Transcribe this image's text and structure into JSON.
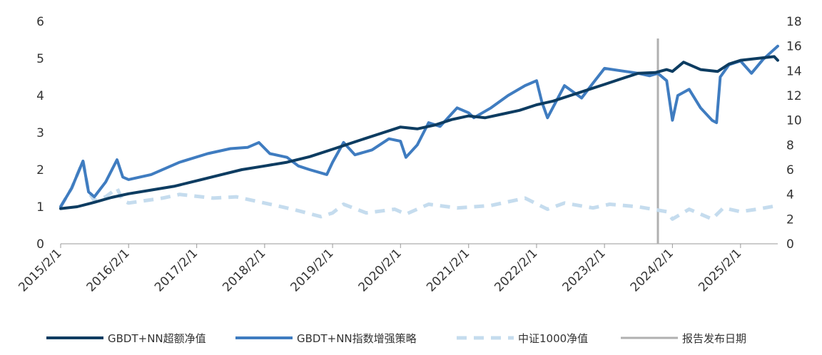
{
  "chart_data": {
    "type": "line",
    "title": "",
    "xlabel": "",
    "ylabel_left": "",
    "ylabel_right": "",
    "ylim_left": [
      0,
      6
    ],
    "ylim_right": [
      0,
      18
    ],
    "yticks_left": [
      "0",
      "1",
      "2",
      "3",
      "4",
      "5",
      "6"
    ],
    "yticks_right": [
      "0",
      "2",
      "4",
      "6",
      "8",
      "10",
      "12",
      "14",
      "16",
      "18"
    ],
    "xlim": [
      "2015/2/1",
      "2025/8/20"
    ],
    "xticks": [
      "2015/2/1",
      "2016/2/1",
      "2017/2/1",
      "2018/2/1",
      "2019/2/1",
      "2020/2/1",
      "2021/2/1",
      "2022/2/1",
      "2023/2/1",
      "2024/2/1",
      "2025/2/1"
    ],
    "grid": false,
    "legend_position": "bottom",
    "report_date": "2023/11/15",
    "report_date_label": "报告发布日期",
    "series": [
      {
        "name": "GBDT+NN超额净值",
        "axis": "left",
        "color": "#0d3c61",
        "style": "solid",
        "points": [
          [
            "2015/2/1",
            0.95
          ],
          [
            "2015/5/1",
            1.0
          ],
          [
            "2015/8/1",
            1.12
          ],
          [
            "2015/11/1",
            1.25
          ],
          [
            "2016/2/1",
            1.35
          ],
          [
            "2016/6/1",
            1.45
          ],
          [
            "2016/10/1",
            1.55
          ],
          [
            "2017/2/1",
            1.7
          ],
          [
            "2017/6/1",
            1.85
          ],
          [
            "2017/10/1",
            2.0
          ],
          [
            "2018/2/1",
            2.1
          ],
          [
            "2018/6/1",
            2.2
          ],
          [
            "2018/10/1",
            2.35
          ],
          [
            "2019/2/1",
            2.55
          ],
          [
            "2019/6/1",
            2.75
          ],
          [
            "2019/10/1",
            2.95
          ],
          [
            "2020/2/1",
            3.15
          ],
          [
            "2020/5/1",
            3.1
          ],
          [
            "2020/8/1",
            3.2
          ],
          [
            "2020/11/1",
            3.35
          ],
          [
            "2021/2/1",
            3.45
          ],
          [
            "2021/5/1",
            3.4
          ],
          [
            "2021/8/1",
            3.5
          ],
          [
            "2021/11/1",
            3.6
          ],
          [
            "2022/2/1",
            3.75
          ],
          [
            "2022/5/1",
            3.85
          ],
          [
            "2022/8/1",
            4.0
          ],
          [
            "2022/11/1",
            4.15
          ],
          [
            "2023/2/1",
            4.3
          ],
          [
            "2023/5/1",
            4.45
          ],
          [
            "2023/8/1",
            4.6
          ],
          [
            "2023/11/1",
            4.62
          ],
          [
            "2024/1/1",
            4.7
          ],
          [
            "2024/2/1",
            4.65
          ],
          [
            "2024/4/1",
            4.9
          ],
          [
            "2024/7/1",
            4.7
          ],
          [
            "2024/10/1",
            4.65
          ],
          [
            "2024/12/1",
            4.85
          ],
          [
            "2025/2/1",
            4.95
          ],
          [
            "2025/5/1",
            5.0
          ],
          [
            "2025/8/1",
            5.05
          ],
          [
            "2025/8/20",
            4.95
          ]
        ]
      },
      {
        "name": "GBDT+NN指数增强策略",
        "axis": "right",
        "color": "#3f7cc0",
        "style": "solid",
        "points": [
          [
            "2015/2/1",
            3.0
          ],
          [
            "2015/4/1",
            4.5
          ],
          [
            "2015/6/1",
            6.7
          ],
          [
            "2015/7/1",
            4.2
          ],
          [
            "2015/8/1",
            3.8
          ],
          [
            "2015/10/1",
            5.0
          ],
          [
            "2015/12/1",
            6.8
          ],
          [
            "2016/1/1",
            5.4
          ],
          [
            "2016/2/1",
            5.2
          ],
          [
            "2016/6/1",
            5.6
          ],
          [
            "2016/11/1",
            6.6
          ],
          [
            "2017/4/1",
            7.3
          ],
          [
            "2017/8/1",
            7.7
          ],
          [
            "2017/11/1",
            7.8
          ],
          [
            "2018/1/1",
            8.2
          ],
          [
            "2018/3/1",
            7.3
          ],
          [
            "2018/6/1",
            7.0
          ],
          [
            "2018/8/1",
            6.3
          ],
          [
            "2018/10/1",
            6.0
          ],
          [
            "2019/1/1",
            5.6
          ],
          [
            "2019/2/1",
            6.6
          ],
          [
            "2019/4/1",
            8.2
          ],
          [
            "2019/6/1",
            7.2
          ],
          [
            "2019/9/1",
            7.6
          ],
          [
            "2019/12/1",
            8.5
          ],
          [
            "2020/2/1",
            8.3
          ],
          [
            "2020/3/1",
            7.0
          ],
          [
            "2020/5/1",
            8.0
          ],
          [
            "2020/7/1",
            9.8
          ],
          [
            "2020/9/1",
            9.5
          ],
          [
            "2020/12/1",
            11.0
          ],
          [
            "2021/2/1",
            10.6
          ],
          [
            "2021/3/1",
            10.2
          ],
          [
            "2021/6/1",
            11.0
          ],
          [
            "2021/9/1",
            12.0
          ],
          [
            "2021/12/1",
            12.8
          ],
          [
            "2022/2/1",
            13.2
          ],
          [
            "2022/3/1",
            11.5
          ],
          [
            "2022/4/1",
            10.2
          ],
          [
            "2022/7/1",
            12.8
          ],
          [
            "2022/10/1",
            11.8
          ],
          [
            "2022/12/1",
            13.0
          ],
          [
            "2023/2/1",
            14.2
          ],
          [
            "2023/5/1",
            14.0
          ],
          [
            "2023/8/1",
            13.8
          ],
          [
            "2023/10/1",
            13.6
          ],
          [
            "2023/11/15",
            13.8
          ],
          [
            "2024/1/1",
            13.2
          ],
          [
            "2024/2/1",
            10.0
          ],
          [
            "2024/3/1",
            12.0
          ],
          [
            "2024/5/1",
            12.5
          ],
          [
            "2024/7/1",
            11.0
          ],
          [
            "2024/9/1",
            10.0
          ],
          [
            "2024/9/25",
            9.8
          ],
          [
            "2024/10/15",
            13.5
          ],
          [
            "2024/12/1",
            14.5
          ],
          [
            "2025/2/1",
            14.8
          ],
          [
            "2025/4/1",
            13.8
          ],
          [
            "2025/6/1",
            14.9
          ],
          [
            "2025/8/20",
            16.0
          ]
        ]
      },
      {
        "name": "中证1000净值",
        "axis": "right",
        "color": "#c5dcee",
        "style": "dashed",
        "points": [
          [
            "2015/2/1",
            3.0
          ],
          [
            "2015/4/1",
            4.5
          ],
          [
            "2015/6/1",
            6.7
          ],
          [
            "2015/7/1",
            4.2
          ],
          [
            "2015/8/1",
            3.5
          ],
          [
            "2015/10/1",
            3.8
          ],
          [
            "2015/12/1",
            4.5
          ],
          [
            "2016/1/1",
            3.5
          ],
          [
            "2016/2/1",
            3.3
          ],
          [
            "2016/8/1",
            3.7
          ],
          [
            "2016/11/1",
            4.0
          ],
          [
            "2017/5/1",
            3.7
          ],
          [
            "2017/9/1",
            3.8
          ],
          [
            "2018/1/1",
            3.4
          ],
          [
            "2018/7/1",
            2.8
          ],
          [
            "2018/12/1",
            2.2
          ],
          [
            "2019/2/1",
            2.5
          ],
          [
            "2019/4/1",
            3.2
          ],
          [
            "2019/8/1",
            2.5
          ],
          [
            "2020/1/1",
            2.8
          ],
          [
            "2020/3/1",
            2.4
          ],
          [
            "2020/7/1",
            3.2
          ],
          [
            "2020/12/1",
            2.9
          ],
          [
            "2021/6/1",
            3.1
          ],
          [
            "2021/12/1",
            3.7
          ],
          [
            "2022/4/1",
            2.8
          ],
          [
            "2022/7/1",
            3.3
          ],
          [
            "2022/12/1",
            2.9
          ],
          [
            "2023/3/1",
            3.2
          ],
          [
            "2023/8/1",
            3.0
          ],
          [
            "2024/1/1",
            2.6
          ],
          [
            "2024/2/1",
            2.0
          ],
          [
            "2024/5/1",
            2.8
          ],
          [
            "2024/9/1",
            2.0
          ],
          [
            "2024/11/1",
            2.9
          ],
          [
            "2025/2/1",
            2.6
          ],
          [
            "2025/5/1",
            2.8
          ],
          [
            "2025/8/20",
            3.1
          ]
        ]
      }
    ]
  }
}
